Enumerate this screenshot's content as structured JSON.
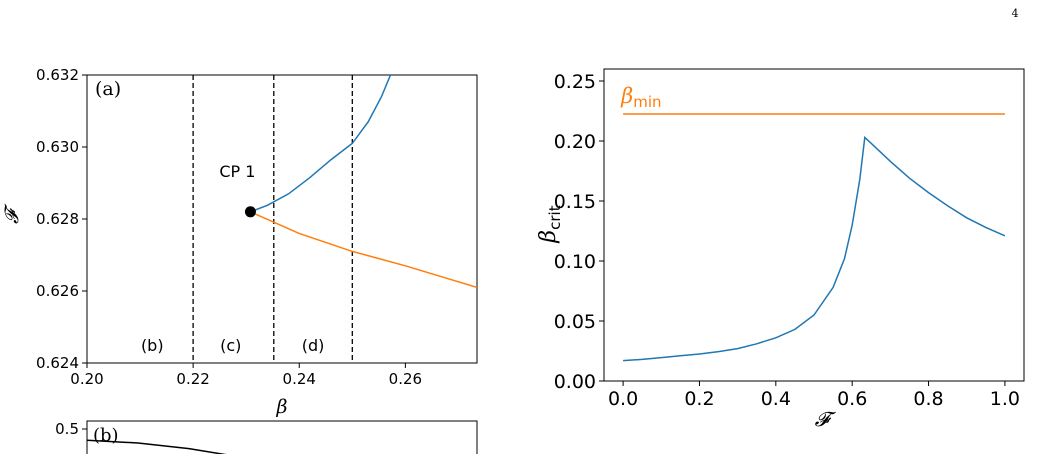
{
  "page_number": "4",
  "chart_data": [
    {
      "type": "line",
      "panel_label": "(a)",
      "xlabel": "β",
      "ylabel": "𝓕",
      "xlim": [
        0.2,
        0.2735
      ],
      "ylim": [
        0.624,
        0.632
      ],
      "x_ticks": [
        "0.20",
        "0.22",
        "0.24",
        "0.26"
      ],
      "y_ticks": [
        "0.624",
        "0.626",
        "0.628",
        "0.630",
        "0.632"
      ],
      "grid": false,
      "series": [
        {
          "color": "#1f77b4",
          "x": [
            0.2308,
            0.234,
            0.238,
            0.242,
            0.246,
            0.25,
            0.253,
            0.2555,
            0.2572
          ],
          "y": [
            0.6282,
            0.62838,
            0.6287,
            0.62915,
            0.62965,
            0.6301,
            0.6307,
            0.6314,
            0.632
          ]
        },
        {
          "color": "#ff7f0e",
          "x": [
            0.2308,
            0.24,
            0.25,
            0.26,
            0.2735
          ],
          "y": [
            0.6282,
            0.6276,
            0.6271,
            0.6267,
            0.6261
          ]
        }
      ],
      "vlines": [
        0.22,
        0.2352,
        0.25
      ],
      "region_labels": [
        {
          "text": "(b)",
          "x": 0.2123
        },
        {
          "text": "(c)",
          "x": 0.2271
        },
        {
          "text": "(d)",
          "x": 0.2426
        }
      ],
      "point": {
        "x": 0.2308,
        "y": 0.6282,
        "label": "CP 1"
      }
    },
    {
      "type": "line",
      "panel_label": "(b)",
      "y_ticks": [
        "0.5"
      ],
      "ylim_top": 0.5,
      "series": [
        {
          "color": "#000000",
          "x": [
            0.0,
            0.15,
            0.3,
            0.45
          ],
          "y": [
            0.46,
            0.45,
            0.43,
            0.4
          ]
        }
      ]
    },
    {
      "type": "line",
      "xlabel": "𝓕",
      "ylabel": "β",
      "ylabel_sub": "crit",
      "xlim": [
        -0.05,
        1.05
      ],
      "ylim": [
        0.0,
        0.26
      ],
      "x_ticks": [
        "0.0",
        "0.2",
        "0.4",
        "0.6",
        "0.8",
        "1.0"
      ],
      "y_ticks": [
        "0.00",
        "0.05",
        "0.10",
        "0.15",
        "0.20",
        "0.25"
      ],
      "grid": false,
      "series": [
        {
          "name": "β",
          "name_sub": "min",
          "color": "#ff7f0e",
          "x": [
            0.0,
            1.0
          ],
          "y": [
            0.2225,
            0.2225
          ]
        },
        {
          "color": "#1f77b4",
          "x": [
            0.0,
            0.05,
            0.1,
            0.15,
            0.2,
            0.25,
            0.3,
            0.35,
            0.4,
            0.45,
            0.5,
            0.55,
            0.58,
            0.6,
            0.62,
            0.633,
            0.65,
            0.7,
            0.75,
            0.8,
            0.85,
            0.9,
            0.95,
            1.0
          ],
          "y": [
            0.017,
            0.018,
            0.0195,
            0.021,
            0.0225,
            0.0245,
            0.027,
            0.031,
            0.036,
            0.043,
            0.055,
            0.078,
            0.102,
            0.13,
            0.168,
            0.203,
            0.198,
            0.183,
            0.169,
            0.157,
            0.146,
            0.136,
            0.128,
            0.121
          ]
        }
      ]
    }
  ]
}
